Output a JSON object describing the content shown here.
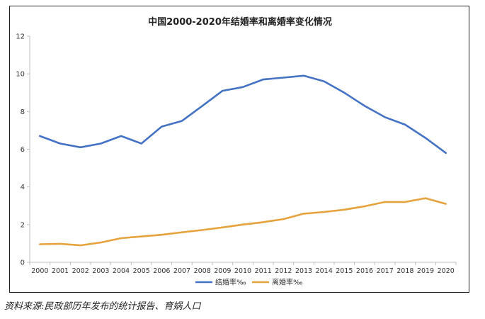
{
  "chart_data": {
    "type": "line",
    "title": "中国2000-2020年结婚率和离婚率变化情况",
    "categories": [
      "2000",
      "2001",
      "2002",
      "2003",
      "2004",
      "2005",
      "2006",
      "2007",
      "2008",
      "2009",
      "2010",
      "2011",
      "2012",
      "2013",
      "2014",
      "2015",
      "2016",
      "2017",
      "2018",
      "2019",
      "2020"
    ],
    "series": [
      {
        "name": "结婚率‰",
        "color": "#4472C4",
        "values": [
          6.7,
          6.3,
          6.1,
          6.3,
          6.7,
          6.3,
          7.2,
          7.5,
          8.3,
          9.1,
          9.3,
          9.7,
          9.8,
          9.9,
          9.6,
          9.0,
          8.3,
          7.7,
          7.3,
          6.6,
          5.8
        ]
      },
      {
        "name": "离婚率‰",
        "color": "#E6A23C",
        "values": [
          0.96,
          0.98,
          0.9,
          1.05,
          1.28,
          1.37,
          1.46,
          1.59,
          1.71,
          1.85,
          2.0,
          2.13,
          2.29,
          2.58,
          2.67,
          2.79,
          2.97,
          3.2,
          3.2,
          3.4,
          3.1
        ]
      }
    ],
    "xlabel": "",
    "ylabel": "",
    "ylim": [
      0,
      12
    ],
    "yticks": [
      0,
      2,
      4,
      6,
      8,
      10,
      12
    ],
    "grid": false,
    "legend_position": "bottom-center"
  },
  "source_note": "资料来源:民政部历年发布的统计报告、育娲人口"
}
